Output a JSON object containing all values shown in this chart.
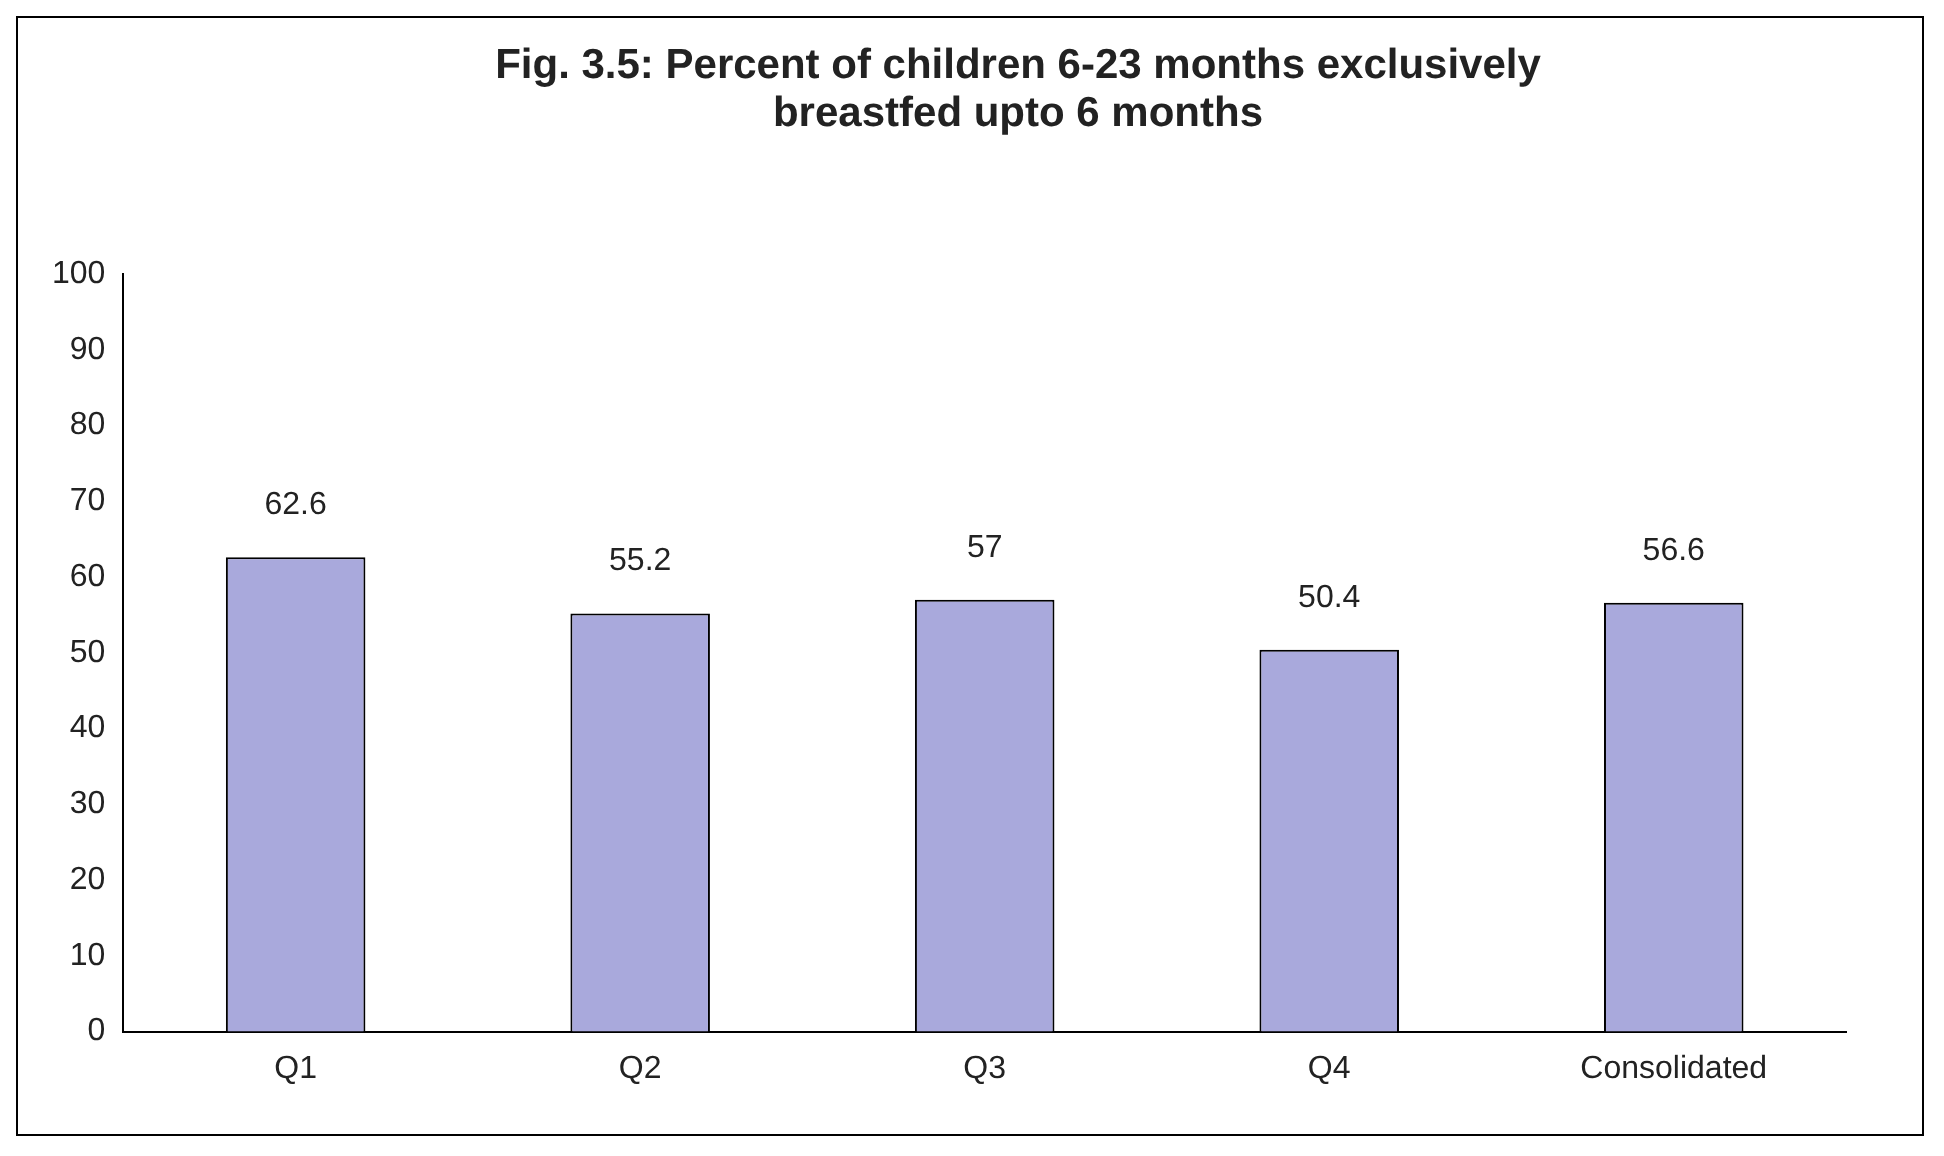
{
  "chart_data": {
    "type": "bar",
    "title": "Fig. 3.5: Percent of children 6-23 months exclusively breastfed upto 6 months",
    "categories": [
      "Q1",
      "Q2",
      "Q3",
      "Q4",
      "Consolidated"
    ],
    "values": [
      62.6,
      55.2,
      57,
      50.4,
      56.6
    ],
    "color": "#a9a9dc",
    "ylim": [
      0,
      100
    ],
    "yticks": [
      0,
      10,
      20,
      30,
      40,
      50,
      60,
      70,
      80,
      90,
      100
    ],
    "grid": false,
    "legend": false,
    "data_labels": true
  }
}
